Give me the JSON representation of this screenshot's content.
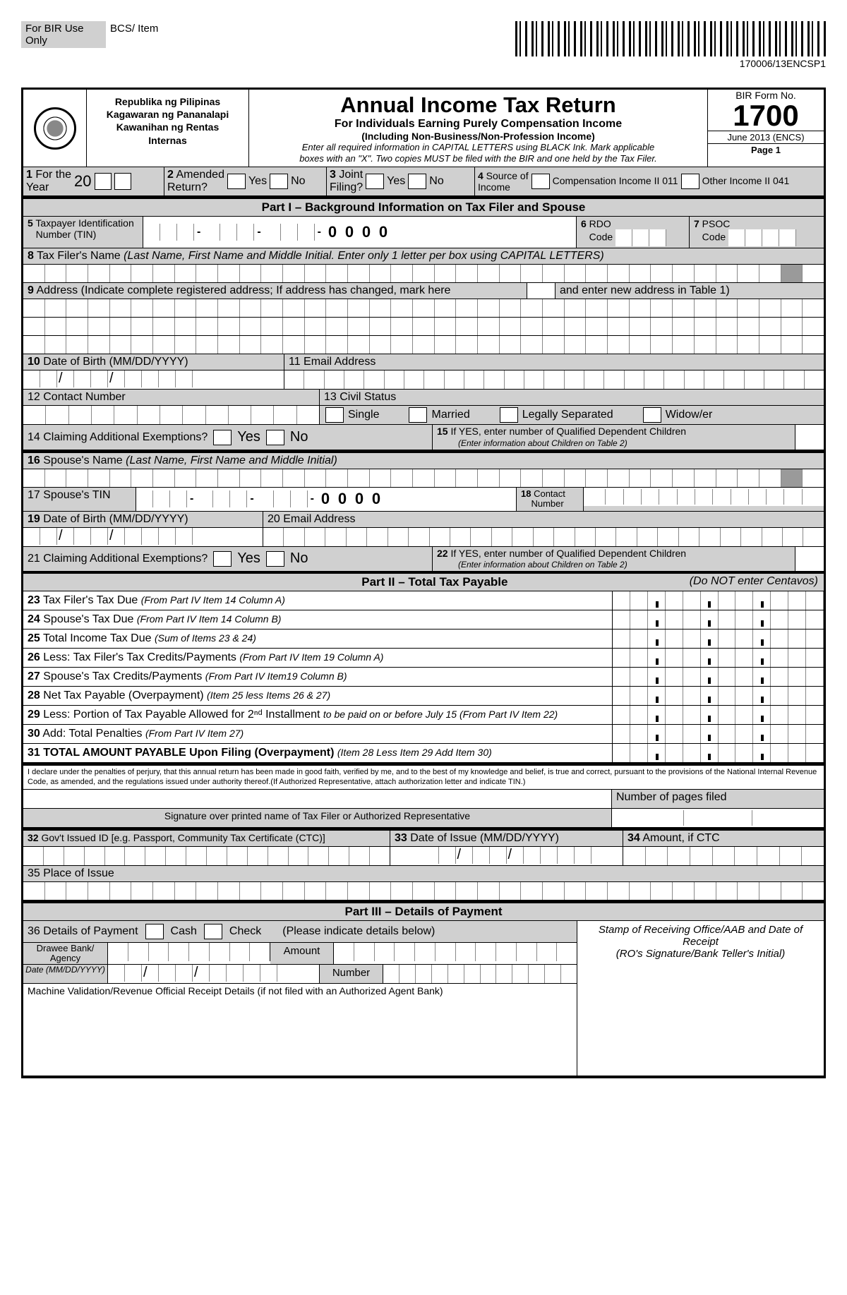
{
  "topBar": {
    "forBir": "For BIR Use Only",
    "bcs": "BCS/ Item"
  },
  "barcodeLabel": "170006/13ENCSP1",
  "republika": {
    "l1": "Republika ng Pilipinas",
    "l2": "Kagawaran ng Pananalapi",
    "l3": "Kawanihan ng Rentas",
    "l4": "Internas"
  },
  "title": {
    "main": "Annual Income Tax Return",
    "sub1": "For Individuals Earning Purely Compensation Income",
    "sub2": "(Including Non-Business/Non-Profession Income)",
    "inst1": "Enter all required information in CAPITAL LETTERS using BLACK Ink. Mark applicable",
    "inst2": "boxes with an \"X\".  Two copies MUST be filed with the BIR and one held by the Tax Filer."
  },
  "formNo": {
    "lbl": "BIR Form No.",
    "num": "1700",
    "ver": "June 2013 (ENCS)",
    "page": "Page 1"
  },
  "r1": {
    "year": "1 For the Year",
    "twenty": "20",
    "amended": "2 Amended Return?",
    "yes": "Yes",
    "no": "No",
    "joint": "3 Joint Filing?",
    "source": "4 Source of Income",
    "comp": "Compensation Income  II 011",
    "other": "Other Income II 041"
  },
  "part1": "Part I – Background Information on Tax Filer and Spouse",
  "f5": {
    "lbl": "5 Taxpayer Identification",
    "lbl2": "Number (TIN)",
    "zeros": "0 0 0 0",
    "rdo": "6 RDO Code",
    "psoc": "7 PSOC Code"
  },
  "f8": "8 Tax Filer's Name (Last Name, First Name and Middle Initial. Enter only 1 letter per box using CAPITAL LETTERS)",
  "f9": {
    "a": "9 Address (Indicate complete registered address; If address has changed, mark here",
    "b": "and enter new address in Table 1)"
  },
  "f10": "10 Date of Birth (MM/DD/YYYY)",
  "f11": "11 Email Address",
  "f12": "12 Contact Number",
  "f13": {
    "lbl": "13 Civil Status",
    "single": "Single",
    "married": "Married",
    "sep": "Legally Separated",
    "widow": "Widow/er"
  },
  "f14": {
    "lbl": "14 Claiming Additional Exemptions?",
    "yes": "Yes",
    "no": "No"
  },
  "f15": {
    "a": "15 If YES, enter number of Qualified Dependent Children",
    "b": "(Enter information about Children on Table 2)"
  },
  "f16": "16 Spouse's Name (Last Name, First Name and Middle Initial)",
  "f17": "17 Spouse's TIN",
  "f18": "18 Contact Number",
  "f19": "19 Date of Birth (MM/DD/YYYY)",
  "f20": "20 Email Address",
  "f21": "21 Claiming Additional Exemptions?",
  "f22": {
    "a": "22 If YES, enter number of Qualified Dependent Children",
    "b": "(Enter information about Children on Table 2)"
  },
  "part2": {
    "t": "Part II – Total Tax Payable",
    "r": "(Do NOT enter Centavos)"
  },
  "items": {
    "i23": {
      "b": "23",
      "t": " Tax Filer's Tax Due ",
      "i": "(From Part IV Item 14 Column A)"
    },
    "i24": {
      "b": "24",
      "t": " Spouse's Tax Due ",
      "i": "(From Part IV Item 14 Column B)"
    },
    "i25": {
      "b": "25",
      "t": " Total Income Tax Due ",
      "i": "(Sum of Items 23 & 24)"
    },
    "i26": {
      "b": "26",
      "t": " Less: Tax Filer's Tax Credits/Payments ",
      "i": "(From Part IV Item 19 Column A)"
    },
    "i27": {
      "b": "27",
      "t": "         Spouse's Tax Credits/Payments ",
      "i": "(From Part IV Item19 Column B)"
    },
    "i28": {
      "b": "28",
      "t": " Net Tax Payable (Overpayment) ",
      "i": "(Item 25 less Items 26 & 27)"
    },
    "i29": {
      "b": "29",
      "t": " Less:  Portion of Tax Payable Allowed for 2ⁿᵈ Installment ",
      "i": "to be paid on or before July 15 (From Part IV Item 22)"
    },
    "i30": {
      "b": "30",
      "t": " Add: Total Penalties ",
      "i": "(From Part IV Item 27)"
    },
    "i31": {
      "b": "31 TOTAL AMOUNT PAYABLE Upon Filing (Overpayment) ",
      "i": "(Item 28 Less Item 29 Add Item 30)"
    }
  },
  "declaration": "I declare under the penalties of perjury, that this annual return has been made in good faith, verified by me, and to the best of my knowledge and belief, is true and correct, pursuant to the provisions of the National Internal Revenue Code, as amended, and the regulations issued under authority thereof.(If Authorized Representative, attach authorization letter and indicate TIN.)",
  "numPages": "Number of pages filed",
  "sigLine": "Signature over printed name of Tax Filer or Authorized Representative",
  "f32": "32 Gov't Issued ID [e.g. Passport, Community Tax Certificate (CTC)]",
  "f33": "33 Date of Issue (MM/DD/YYYY)",
  "f34": "34 Amount, if CTC",
  "f35": "35 Place of Issue",
  "part3": "Part III – Details of Payment",
  "f36": {
    "lbl": "36 Details of Payment",
    "cash": "Cash",
    "check": "Check",
    "pls": "(Please indicate details below)"
  },
  "stamp": {
    "a": "Stamp of Receiving Office/AAB and Date of Receipt",
    "b": "(RO's Signature/Bank Teller's Initial)"
  },
  "drawee": "Drawee Bank/ Agency",
  "amount": "Amount",
  "date": "Date (MM/DD/YYYY)",
  "number": "Number",
  "mvrod": "Machine Validation/Revenue Official Receipt Details (if not filed with an Authorized Agent Bank)"
}
